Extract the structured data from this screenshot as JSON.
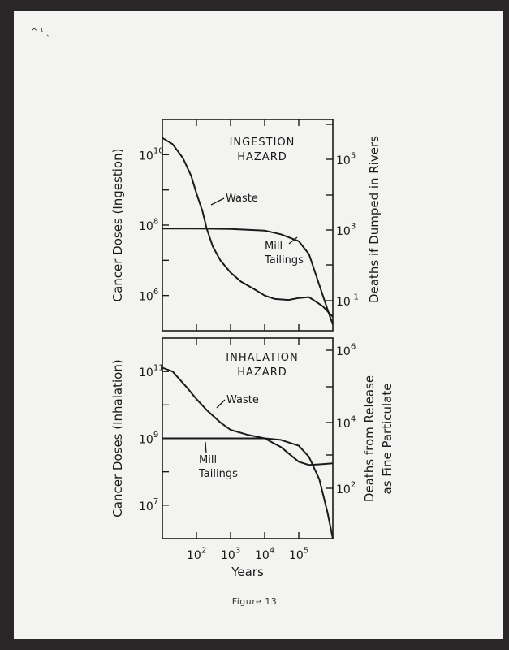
{
  "corner_mark": "^ ¹ ˎ",
  "caption": "Figure 13",
  "chart_data": [
    {
      "type": "line",
      "title": "INGESTION HAZARD",
      "title_lines": [
        "INGESTION",
        "HAZARD"
      ],
      "xlabel": "Years",
      "ylabel": "Cancer Doses (Ingestion)",
      "ylabel_right": "Deaths if Dumped in Rivers",
      "x_scale": "log",
      "xlim": [
        10,
        1000000
      ],
      "y_scale": "log",
      "ylim": [
        100000,
        100000000000
      ],
      "y_ticks": [
        {
          "value": 1000000,
          "base": "10",
          "exp": "6"
        },
        {
          "value": 100000000,
          "base": "10",
          "exp": "8"
        },
        {
          "value": 10000000000,
          "base": "10",
          "exp": "10"
        }
      ],
      "y_right_ticks": [
        {
          "label_base": "10",
          "label_exp": "-1"
        },
        {
          "label_base": "10",
          "label_exp": "3"
        },
        {
          "label_base": "10",
          "label_exp": "5"
        }
      ],
      "series": [
        {
          "name": "Waste",
          "x": [
            10,
            20,
            40,
            70,
            100,
            150,
            200,
            300,
            500,
            1000,
            2000,
            5000,
            10000,
            20000,
            50000,
            100000,
            200000,
            500000,
            1000000
          ],
          "y": [
            30000000000,
            20000000000,
            8000000000,
            2500000000,
            800000000,
            250000000,
            80000000,
            25000000,
            10000000,
            4500000,
            2500000,
            1500000,
            1000000,
            800000,
            750000,
            850000,
            900000,
            500000,
            250000
          ]
        },
        {
          "name": "Mill Tailings",
          "x": [
            10,
            100,
            1000,
            10000,
            30000,
            100000,
            200000,
            400000,
            700000,
            1000000
          ],
          "y": [
            80000000,
            80000000,
            78000000,
            70000000,
            55000000,
            35000000,
            15000000,
            2000000,
            400000,
            150000
          ]
        }
      ],
      "annotations": [
        "Waste",
        "Mill",
        "Tailings"
      ]
    },
    {
      "type": "line",
      "title": "INHALATION HAZARD",
      "title_lines": [
        "INHALATION",
        "HAZARD"
      ],
      "xlabel": "Years",
      "ylabel": "Cancer Doses (Inhalation)",
      "ylabel_right_lines": [
        "Deaths from Release",
        "as Fine Particulate"
      ],
      "x_scale": "log",
      "xlim": [
        10,
        1000000
      ],
      "x_ticks": [
        {
          "value": 100,
          "base": "10",
          "exp": "2"
        },
        {
          "value": 1000,
          "base": "10",
          "exp": "3"
        },
        {
          "value": 10000,
          "base": "10",
          "exp": "4"
        },
        {
          "value": 100000,
          "base": "10",
          "exp": "5"
        }
      ],
      "y_scale": "log",
      "ylim": [
        1000000,
        1000000000000
      ],
      "y_ticks": [
        {
          "value": 10000000,
          "base": "10",
          "exp": "7"
        },
        {
          "value": 1000000000,
          "base": "10",
          "exp": "9"
        },
        {
          "value": 100000000000,
          "base": "10",
          "exp": "11"
        }
      ],
      "y_right_ticks": [
        {
          "label_base": "10",
          "label_exp": "2"
        },
        {
          "label_base": "10",
          "label_exp": "4"
        },
        {
          "label_base": "10",
          "label_exp": "6"
        }
      ],
      "series": [
        {
          "name": "Waste",
          "x": [
            10,
            20,
            50,
            100,
            200,
            500,
            1000,
            3000,
            10000,
            30000,
            100000,
            200000,
            500000,
            1000000
          ],
          "y": [
            130000000000,
            100000000000,
            35000000000,
            15000000000,
            7000000000,
            3000000000,
            1800000000,
            1300000000,
            1000000000,
            550000000,
            200000000,
            160000000,
            170000000,
            180000000
          ]
        },
        {
          "name": "Mill Tailings",
          "x": [
            10,
            100,
            1000,
            10000,
            30000,
            100000,
            200000,
            400000,
            700000,
            1000000
          ],
          "y": [
            1000000000,
            1000000000,
            1000000000,
            1000000000,
            900000000,
            600000000,
            280000000,
            60000000,
            6000000,
            800000
          ]
        }
      ],
      "annotations": [
        "Waste",
        "Mill",
        "Tailings"
      ]
    }
  ]
}
